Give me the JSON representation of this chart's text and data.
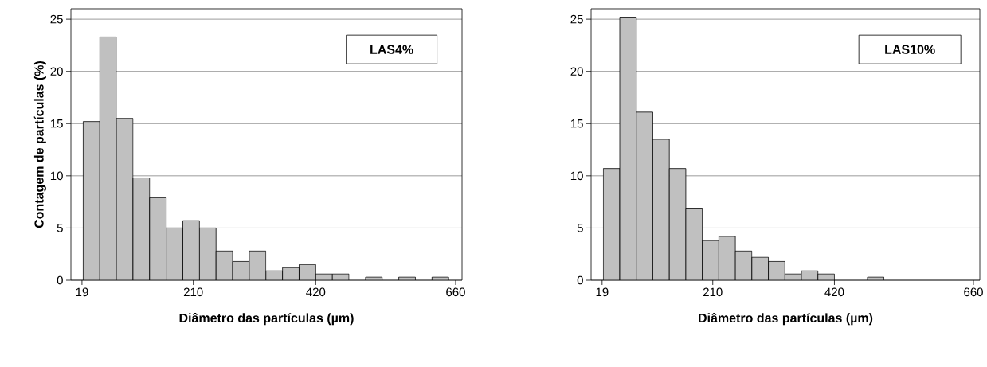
{
  "chart_data": [
    {
      "type": "histogram",
      "bins": [
        21,
        49.5,
        78,
        106.5,
        135,
        163.5,
        192,
        220.5,
        249,
        277.5,
        306,
        334.5,
        363,
        391.5,
        420,
        448.5,
        477,
        505.5,
        534,
        562.5,
        591,
        619.5,
        648
      ],
      "values": [
        15.2,
        23.3,
        15.5,
        9.8,
        7.9,
        5.0,
        5.7,
        5.0,
        2.8,
        1.8,
        2.8,
        0.9,
        1.2,
        1.5,
        0.6,
        0.6,
        0,
        0.3,
        0,
        0.3,
        0,
        0.3
      ],
      "color": "#c0c0c0",
      "xlim": [
        0,
        671
      ],
      "xticks": [
        19,
        210,
        420,
        660
      ],
      "ylim": [
        0,
        26
      ],
      "yticks": [
        0,
        5,
        10,
        15,
        20,
        25
      ],
      "grid": "y",
      "xlabel": "Diâmetro das partículas (µm)",
      "ylabel": "Contagem de partículas (%)",
      "annotations": [
        "LAS4%"
      ]
    },
    {
      "type": "histogram",
      "bins": [
        21,
        49.5,
        78,
        106.5,
        135,
        163.5,
        192,
        220.5,
        249,
        277.5,
        306,
        334.5,
        363,
        391.5,
        420,
        448.5,
        477,
        505.5,
        534,
        562.5,
        591,
        619.5,
        648
      ],
      "values": [
        10.7,
        25.2,
        16.1,
        13.5,
        10.7,
        6.9,
        3.8,
        4.2,
        2.8,
        2.2,
        1.8,
        0.6,
        0.9,
        0.6,
        0,
        0,
        0.3,
        0,
        0,
        0,
        0,
        0
      ],
      "color": "#c0c0c0",
      "xlim": [
        0,
        671
      ],
      "xticks": [
        19,
        210,
        420,
        660
      ],
      "ylim": [
        0,
        26
      ],
      "yticks": [
        0,
        5,
        10,
        15,
        20,
        25
      ],
      "grid": "y",
      "xlabel": "Diâmetro das partículas (µm)",
      "annotations": [
        "LAS10%"
      ]
    }
  ]
}
